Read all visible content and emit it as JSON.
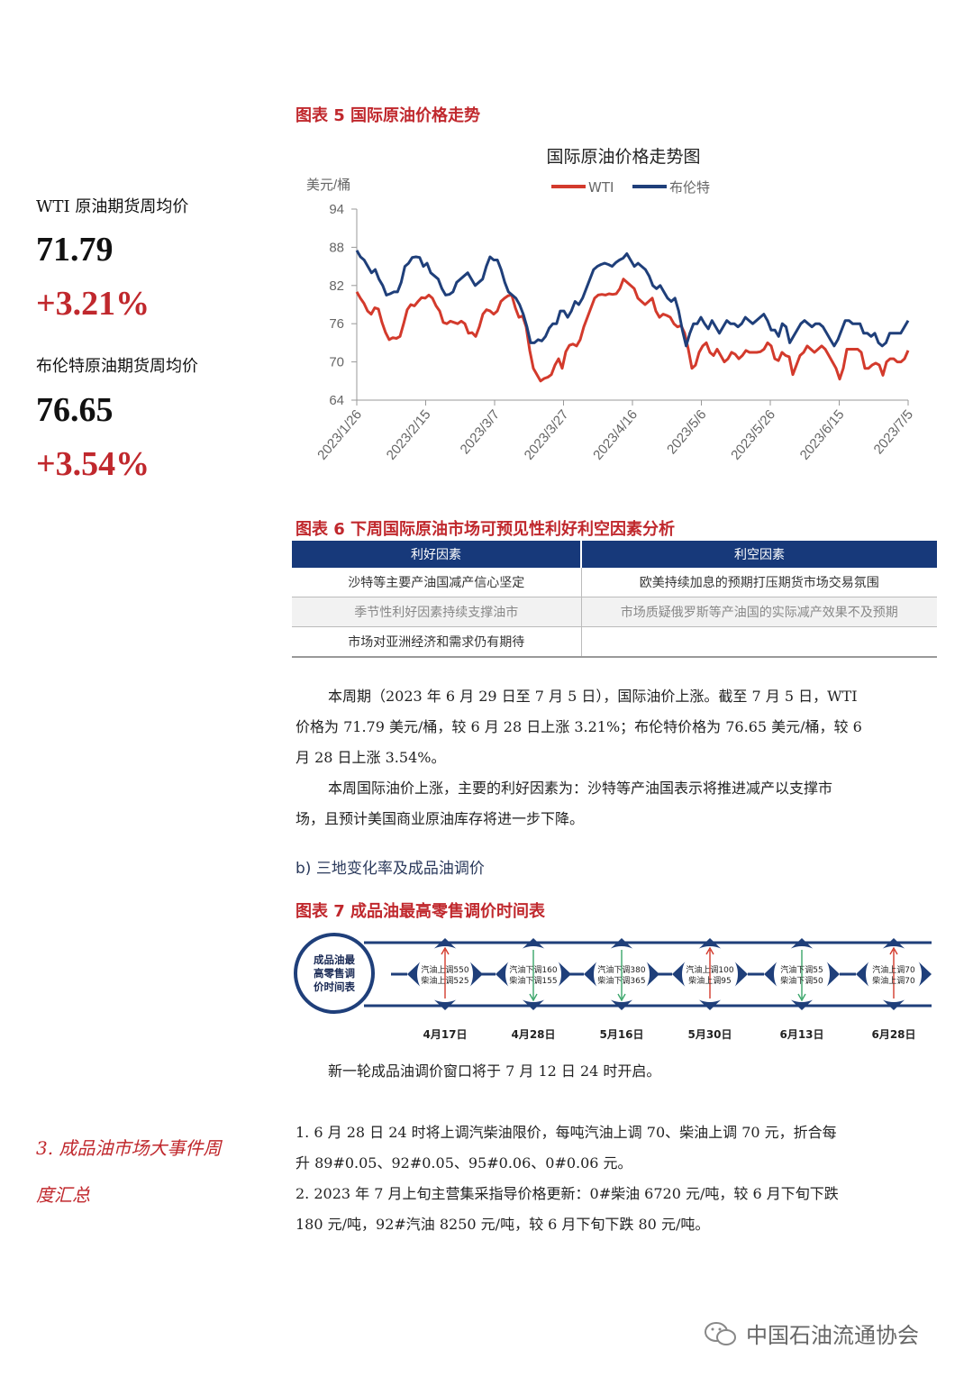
{
  "sidebar": {
    "wti_label": "WTI 原油期货周均价",
    "wti_value": "71.79",
    "wti_change": "+3.21%",
    "brent_label": "布伦特原油期货周均价",
    "brent_value": "76.65",
    "brent_change": "+3.54%",
    "section3_line1": "3.  成品油市场大事件周",
    "section3_line2": "度汇总"
  },
  "figure5": {
    "caption": "图表 5 国际原油价格走势"
  },
  "chart_data": {
    "type": "line",
    "title": "国际原油价格走势图",
    "ylabel": "美元/桶",
    "ylim": [
      64,
      94
    ],
    "yticks": [
      94,
      88,
      82,
      76,
      70,
      64
    ],
    "xticks": [
      "2023/1/26",
      "2023/2/15",
      "2023/3/7",
      "2023/3/27",
      "2023/4/16",
      "2023/5/6",
      "2023/5/26",
      "2023/6/15",
      "2023/7/5"
    ],
    "legend_position": "top-right",
    "series": [
      {
        "name": "WTI",
        "color": "#d33a2c",
        "values": [
          81.0,
          80.0,
          79.2,
          78.0,
          77.5,
          78.5,
          78.3,
          76.2,
          74.6,
          73.5,
          73.8,
          73.7,
          74.0,
          76.0,
          78.2,
          79.0,
          78.8,
          79.5,
          80.1,
          80.0,
          80.5,
          80.0,
          78.8,
          78.0,
          76.2,
          76.0,
          76.4,
          76.2,
          76.0,
          76.4,
          76.0,
          74.5,
          74.6,
          74.0,
          75.5,
          77.5,
          78.2,
          78.0,
          77.5,
          78.0,
          79.5,
          80.0,
          80.4,
          80.5,
          78.5,
          77.0,
          77.2,
          75.5,
          71.8,
          69.0,
          68.0,
          67.0,
          67.4,
          67.6,
          68.0,
          69.5,
          70.5,
          69.0,
          71.6,
          72.6,
          72.8,
          72.5,
          73.5,
          75.5,
          77.0,
          78.5,
          80.0,
          80.5,
          80.6,
          80.5,
          80.7,
          80.6,
          80.7,
          81.5,
          83.0,
          82.5,
          82.0,
          81.5,
          80.0,
          79.5,
          79.0,
          79.5,
          80.0,
          78.0,
          77.0,
          77.5,
          77.3,
          77.0,
          76.0,
          75.5,
          75.7,
          74.5,
          72.0,
          69.0,
          69.5,
          71.5,
          72.5,
          73.0,
          71.5,
          71.0,
          72.0,
          71.0,
          70.0,
          70.5,
          71.5,
          71.2,
          70.5,
          71.0,
          71.8,
          71.5,
          71.5,
          71.5,
          71.6,
          72.0,
          73.0,
          72.5,
          70.5,
          70.2,
          71.5,
          71.0,
          70.8,
          68.0,
          69.5,
          71.0,
          71.5,
          72.5,
          72.0,
          71.5,
          72.0,
          72.5,
          72.0,
          71.0,
          70.0,
          69.0,
          67.3,
          69.0,
          72.0,
          72.0,
          72.0,
          72.0,
          71.5,
          69.0,
          69.0,
          69.5,
          69.8,
          69.5,
          67.9,
          70.0,
          70.5,
          70.5,
          70.0,
          70.0,
          70.5,
          71.8
        ]
      },
      {
        "name": "布伦特",
        "color": "#1f3f7a",
        "values": [
          87.5,
          86.5,
          86.0,
          85.0,
          84.0,
          84.5,
          83.0,
          82.0,
          80.5,
          80.7,
          81.0,
          81.0,
          82.5,
          85.0,
          85.5,
          86.4,
          86.5,
          86.4,
          85.0,
          85.5,
          84.0,
          83.5,
          83.0,
          81.5,
          80.5,
          80.6,
          81.0,
          82.5,
          83.0,
          83.5,
          84.0,
          83.0,
          82.0,
          82.5,
          83.0,
          85.0,
          86.5,
          86.0,
          86.0,
          84.5,
          82.5,
          81.0,
          80.5,
          80.0,
          79.0,
          77.5,
          75.5,
          73.0,
          73.0,
          73.5,
          73.3,
          74.0,
          75.3,
          76.0,
          76.0,
          78.0,
          78.0,
          77.0,
          78.0,
          79.5,
          79.0,
          80.0,
          81.5,
          83.0,
          84.5,
          85.0,
          85.3,
          85.5,
          85.3,
          85.0,
          85.6,
          86.0,
          86.3,
          87.0,
          86.0,
          85.0,
          85.5,
          85.0,
          84.5,
          83.5,
          82.0,
          81.5,
          82.0,
          81.0,
          80.0,
          79.5,
          80.0,
          78.0,
          75.0,
          72.5,
          74.5,
          76.0,
          76.0,
          77.0,
          76.0,
          75.2,
          76.5,
          75.5,
          74.5,
          75.5,
          76.5,
          76.0,
          76.0,
          75.5,
          76.0,
          77.0,
          76.5,
          76.0,
          76.5,
          77.0,
          77.5,
          76.5,
          75.0,
          75.0,
          74.0,
          76.0,
          75.5,
          73.0,
          74.0,
          75.0,
          76.0,
          76.5,
          76.0,
          75.5,
          76.0,
          76.0,
          75.5,
          74.5,
          73.5,
          72.5,
          73.5,
          75.0,
          76.5,
          76.5,
          76.0,
          76.0,
          76.0,
          74.5,
          74.5,
          74.0,
          74.5,
          73.0,
          72.5,
          73.0,
          74.5,
          74.5,
          74.5,
          74.5,
          75.5,
          76.5
        ]
      }
    ]
  },
  "figure6": {
    "caption": "图表 6 下周国际原油市场可预见性利好利空因素分析",
    "headers": [
      "利好因素",
      "利空因素"
    ],
    "rows": [
      [
        "沙特等主要产油国减产信心坚定",
        "欧美持续加息的预期打压期货市场交易氛围"
      ],
      [
        "季节性利好因素持续支撑油市",
        "市场质疑俄罗斯等产油国的实际减产效果不及预期"
      ],
      [
        "市场对亚洲经济和需求仍有期待",
        ""
      ]
    ]
  },
  "text": {
    "p1_line1": "本周期（2023 年 6 月 29 日至 7 月 5 日），国际油价上涨。截至 7 月 5 日，WTI",
    "p1_line2": "价格为 71.79 美元/桶，较 6 月 28 日上涨 3.21%；布伦特价格为 76.65 美元/桶，较 6",
    "p1_line3": "月 28 日上涨 3.54%。",
    "p2_line1": "本周国际油价上涨，主要的利好因素为：沙特等产油国表示将推进减产以支撑市",
    "p2_line2": "场，且预计美国商业原油库存将进一步下降。",
    "sub_b": "b)   三地变化率及成品油调价",
    "p3": "新一轮成品油调价窗口将于 7 月 12 日 24 时开启。",
    "item1_line1": "1.    6 月 28 日 24 时将上调汽柴油限价，每吨汽油上调 70、柴油上调 70 元，折合每",
    "item1_line2": "升 89#0.05、92#0.05、95#0.06、0#0.06 元。",
    "item2_line1": "2.    2023 年 7 月上旬主营集采指导价格更新：0#柴油 6720 元/吨，较 6 月下旬下跌",
    "item2_line2": "180 元/吨，92#汽油 8250 元/吨，较 6 月下旬下跌 80 元/吨。"
  },
  "figure7": {
    "caption": "图表 7 成品油最高零售调价时间表",
    "center_label": [
      "成品油最",
      "高零售调",
      "价时间表"
    ],
    "events": [
      {
        "date": "4月17日",
        "line1": "汽油上调550",
        "line2": "柴油上调525",
        "direction": "up"
      },
      {
        "date": "4月28日",
        "line1": "汽油下调160",
        "line2": "柴油下调155",
        "direction": "down"
      },
      {
        "date": "5月16日",
        "line1": "汽油下调380",
        "line2": "柴油下调365",
        "direction": "down"
      },
      {
        "date": "5月30日",
        "line1": "汽油上调100",
        "line2": "柴油上调95",
        "direction": "up"
      },
      {
        "date": "6月13日",
        "line1": "汽油下调55",
        "line2": "柴油下调50",
        "direction": "down"
      },
      {
        "date": "6月28日",
        "line1": "汽油上调70",
        "line2": "柴油上调70",
        "direction": "up"
      }
    ]
  },
  "watermark": "中国石油流通协会"
}
